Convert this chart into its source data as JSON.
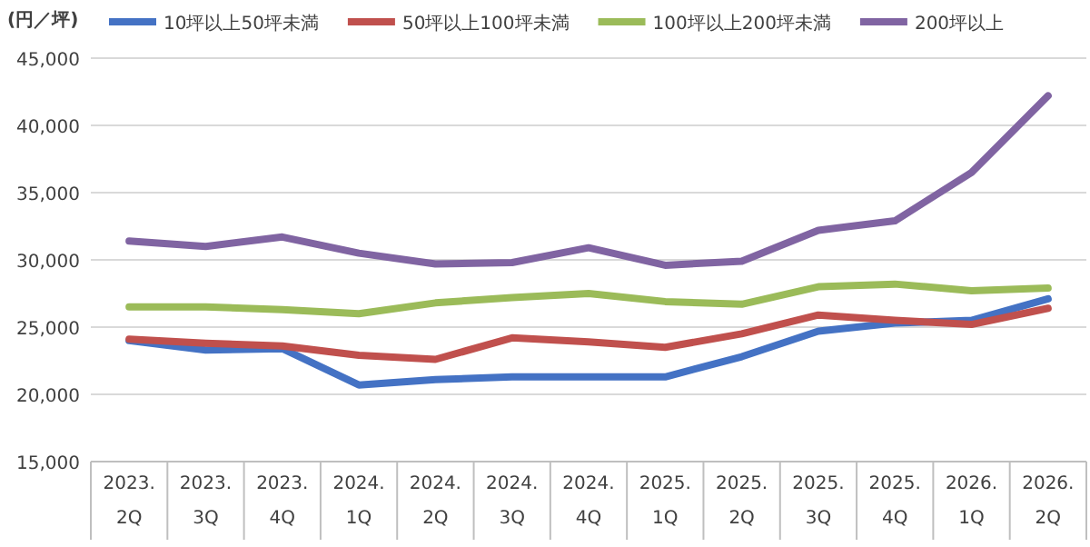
{
  "chart_data": {
    "type": "line",
    "ylabel": "(円／坪)",
    "legend": "top",
    "grid": "y",
    "categories": [
      "2023.\n2Q",
      "2023.\n3Q",
      "2023.\n4Q",
      "2024.\n1Q",
      "2024.\n2Q",
      "2024.\n3Q",
      "2024.\n4Q",
      "2025.\n1Q",
      "2025.\n2Q",
      "2025.\n3Q",
      "2025.\n4Q",
      "2026.\n1Q",
      "2026.\n2Q"
    ],
    "ylim": [
      15000,
      45000
    ],
    "yticks": [
      {
        "value": 15000,
        "label": "15,000"
      },
      {
        "value": 20000,
        "label": "20,000"
      },
      {
        "value": 25000,
        "label": "25,000"
      },
      {
        "value": 30000,
        "label": "30,000"
      },
      {
        "value": 35000,
        "label": "35,000"
      },
      {
        "value": 40000,
        "label": "40,000"
      },
      {
        "value": 45000,
        "label": "45,000"
      }
    ],
    "series": [
      {
        "name": "10坪以上50坪未満",
        "color": "#4472c4",
        "values": [
          24000,
          23300,
          23400,
          20700,
          21100,
          21300,
          21300,
          21300,
          22800,
          24700,
          25300,
          25500,
          27100
        ]
      },
      {
        "name": "50坪以上100坪未満",
        "color": "#c0504d",
        "values": [
          24100,
          23800,
          23600,
          22900,
          22600,
          24200,
          23900,
          23500,
          24500,
          25900,
          25500,
          25200,
          26400
        ]
      },
      {
        "name": "100坪以上200坪未満",
        "color": "#9bbb59",
        "values": [
          26500,
          26500,
          26300,
          26000,
          26800,
          27200,
          27500,
          26900,
          26700,
          28000,
          28200,
          27700,
          27900
        ]
      },
      {
        "name": "200坪以上",
        "color": "#8064a2",
        "values": [
          31400,
          31000,
          31700,
          30500,
          29700,
          29800,
          30900,
          29600,
          29900,
          32200,
          32900,
          36500,
          42200
        ]
      }
    ]
  }
}
